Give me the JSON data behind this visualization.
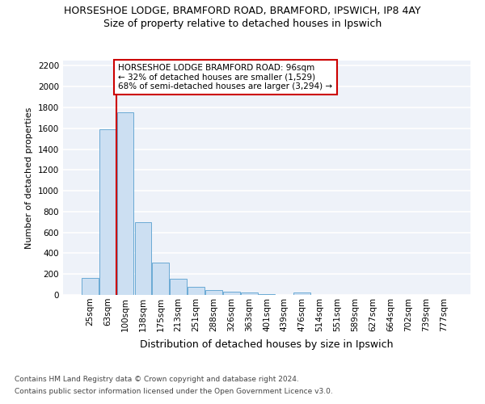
{
  "title1": "HORSESHOE LODGE, BRAMFORD ROAD, BRAMFORD, IPSWICH, IP8 4AY",
  "title2": "Size of property relative to detached houses in Ipswich",
  "xlabel": "Distribution of detached houses by size in Ipswich",
  "ylabel": "Number of detached properties",
  "footnote1": "Contains HM Land Registry data © Crown copyright and database right 2024.",
  "footnote2": "Contains public sector information licensed under the Open Government Licence v3.0.",
  "categories": [
    "25sqm",
    "63sqm",
    "100sqm",
    "138sqm",
    "175sqm",
    "213sqm",
    "251sqm",
    "288sqm",
    "326sqm",
    "363sqm",
    "401sqm",
    "439sqm",
    "476sqm",
    "514sqm",
    "551sqm",
    "589sqm",
    "627sqm",
    "664sqm",
    "702sqm",
    "739sqm",
    "777sqm"
  ],
  "values": [
    160,
    1590,
    1750,
    700,
    310,
    155,
    80,
    45,
    30,
    20,
    5,
    0,
    20,
    0,
    0,
    0,
    0,
    0,
    0,
    0,
    0
  ],
  "bar_color": "#ccdff2",
  "bar_edge_color": "#6aaad4",
  "vline_color": "#cc0000",
  "annotation_text": "HORSESHOE LODGE BRAMFORD ROAD: 96sqm\n← 32% of detached houses are smaller (1,529)\n68% of semi-detached houses are larger (3,294) →",
  "annotation_box_color": "#ffffff",
  "annotation_box_edge": "#cc0000",
  "ylim": [
    0,
    2250
  ],
  "yticks": [
    0,
    200,
    400,
    600,
    800,
    1000,
    1200,
    1400,
    1600,
    1800,
    2000,
    2200
  ],
  "bg_color": "#eef2f9",
  "title1_fontsize": 9,
  "title2_fontsize": 9,
  "ylabel_fontsize": 8,
  "xlabel_fontsize": 9,
  "tick_fontsize": 7.5,
  "annot_fontsize": 7.5,
  "footnote_fontsize": 6.5
}
